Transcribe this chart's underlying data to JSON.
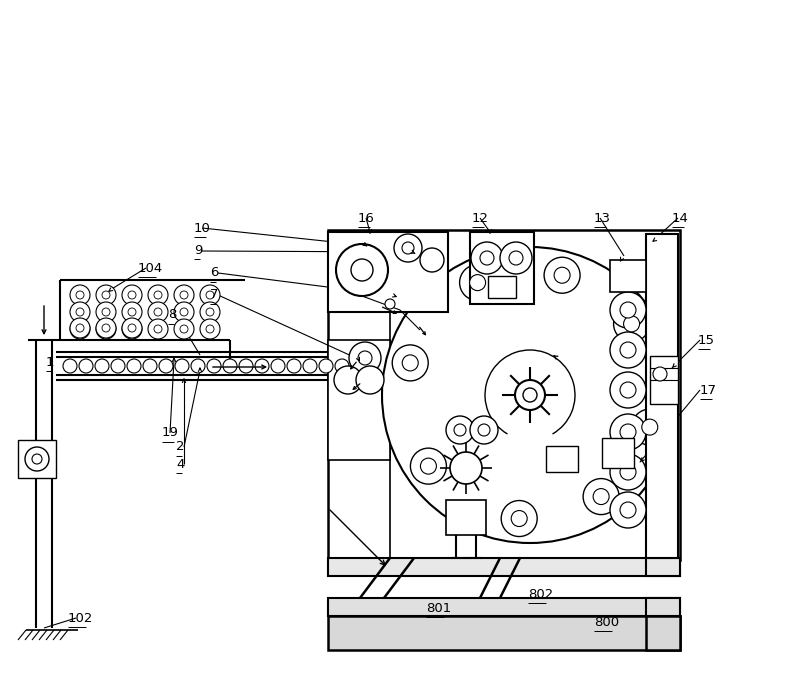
{
  "bg": "#ffffff",
  "lc": "#000000",
  "figw": 8.0,
  "figh": 6.81,
  "dpi": 100,
  "labels": [
    [
      "1",
      46,
      362,
      true
    ],
    [
      "2",
      176,
      447,
      true
    ],
    [
      "4",
      176,
      464,
      true
    ],
    [
      "6",
      210,
      273,
      true
    ],
    [
      "7",
      210,
      295,
      true
    ],
    [
      "8",
      168,
      315,
      true
    ],
    [
      "9",
      194,
      250,
      true
    ],
    [
      "10",
      194,
      228,
      true
    ],
    [
      "12",
      472,
      218,
      true
    ],
    [
      "13",
      594,
      218,
      true
    ],
    [
      "14",
      672,
      218,
      true
    ],
    [
      "15",
      698,
      340,
      true
    ],
    [
      "16",
      358,
      218,
      true
    ],
    [
      "17",
      700,
      390,
      true
    ],
    [
      "19",
      162,
      433,
      true
    ],
    [
      "102",
      68,
      618,
      true
    ],
    [
      "104",
      138,
      268,
      true
    ],
    [
      "800",
      594,
      622,
      true
    ],
    [
      "801",
      426,
      608,
      true
    ],
    [
      "802",
      528,
      594,
      true
    ]
  ]
}
